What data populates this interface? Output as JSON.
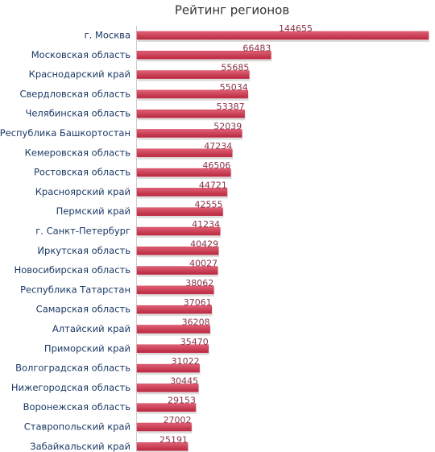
{
  "chart_data": {
    "type": "bar",
    "orientation": "horizontal",
    "title": "Рейтинг регионов",
    "categories": [
      "г. Москва",
      "Московская область",
      "Краснодарский край",
      "Свердловская область",
      "Челябинская область",
      "Республика Башкортостан",
      "Кемеровская область",
      "Ростовская область",
      "Красноярский край",
      "Пермский край",
      "г. Санкт-Петербург",
      "Иркутская область",
      "Новосибирская область",
      "Республика Татарстан",
      "Самарская область",
      "Алтайский край",
      "Приморский край",
      "Волгоградская область",
      "Нижегородская область",
      "Воронежская область",
      "Ставропольский край",
      "Забайкальский край"
    ],
    "values": [
      144655,
      66483,
      55685,
      55034,
      53387,
      52039,
      47234,
      46506,
      44721,
      42555,
      41234,
      40429,
      40027,
      38062,
      37061,
      36208,
      35470,
      31022,
      30445,
      29153,
      27002,
      25191
    ],
    "color": "#cc3a52"
  }
}
